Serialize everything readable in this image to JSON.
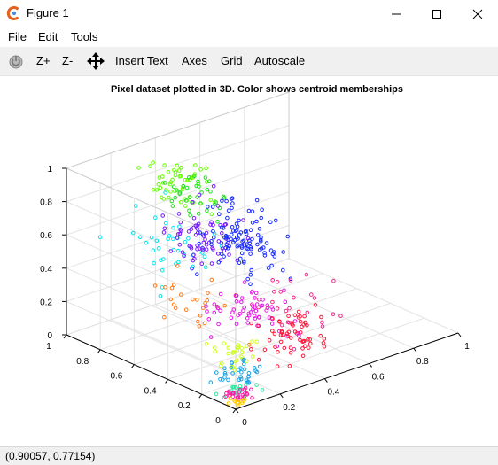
{
  "window": {
    "title": "Figure 1",
    "accent_color": "#e7601a"
  },
  "menu": {
    "file": "File",
    "edit": "Edit",
    "tools": "Tools"
  },
  "toolbar": {
    "zoom_in": "Z+",
    "zoom_out": "Z-",
    "insert_text": "Insert Text",
    "axes": "Axes",
    "grid": "Grid",
    "autoscale": "Autoscale"
  },
  "status": {
    "coords": "(0.90057, 0.77154)"
  },
  "chart_data": {
    "type": "scatter",
    "title": "Pixel dataset plotted in 3D. Color shows centroid memberships",
    "xlim": [
      0,
      1
    ],
    "ylim": [
      0,
      1
    ],
    "zlim": [
      0,
      1
    ],
    "x_ticks": [
      "0",
      "0.2",
      "0.4",
      "0.6",
      "0.8",
      "1"
    ],
    "y_ticks": [
      "0",
      "0.2",
      "0.4",
      "0.6",
      "0.8",
      "1"
    ],
    "z_ticks": [
      "0",
      "0.2",
      "0.4",
      "0.6",
      "0.8",
      "1"
    ],
    "grid": true,
    "marker": "open circle",
    "clusters": [
      {
        "color": "#66ff00",
        "center": [
          0.28,
          0.7,
          0.92
        ],
        "spread": [
          0.05,
          0.08,
          0.07
        ],
        "count": 55
      },
      {
        "color": "#22dd22",
        "center": [
          0.35,
          0.7,
          0.8
        ],
        "spread": [
          0.05,
          0.07,
          0.06
        ],
        "count": 35
      },
      {
        "color": "#00e5ee",
        "center": [
          0.12,
          0.55,
          0.7
        ],
        "spread": [
          0.05,
          0.12,
          0.1
        ],
        "count": 40
      },
      {
        "color": "#7a1aff",
        "center": [
          0.32,
          0.58,
          0.62
        ],
        "spread": [
          0.06,
          0.1,
          0.08
        ],
        "count": 70
      },
      {
        "color": "#1a2bff",
        "center": [
          0.48,
          0.62,
          0.52
        ],
        "spread": [
          0.06,
          0.1,
          0.1
        ],
        "count": 110
      },
      {
        "color": "#ee2e8b",
        "center": [
          0.45,
          0.3,
          0.3
        ],
        "spread": [
          0.08,
          0.1,
          0.08
        ],
        "count": 30
      },
      {
        "color": "#ff7a1a",
        "center": [
          0.12,
          0.45,
          0.38
        ],
        "spread": [
          0.04,
          0.1,
          0.07
        ],
        "count": 25
      },
      {
        "color": "#e61ae6",
        "center": [
          0.3,
          0.3,
          0.3
        ],
        "spread": [
          0.07,
          0.1,
          0.07
        ],
        "count": 60
      },
      {
        "color": "#ff1a3c",
        "center": [
          0.4,
          0.22,
          0.18
        ],
        "spread": [
          0.07,
          0.08,
          0.06
        ],
        "count": 60
      },
      {
        "color": "#ccff1a",
        "center": [
          0.12,
          0.15,
          0.18
        ],
        "spread": [
          0.04,
          0.05,
          0.05
        ],
        "count": 30
      },
      {
        "color": "#1aa3e6",
        "center": [
          0.12,
          0.15,
          0.08
        ],
        "spread": [
          0.04,
          0.05,
          0.04
        ],
        "count": 35
      },
      {
        "color": "#2ee6a0",
        "center": [
          0.07,
          0.08,
          0.04
        ],
        "spread": [
          0.03,
          0.03,
          0.02
        ],
        "count": 20
      },
      {
        "color": "#ff1aa3",
        "center": [
          0.05,
          0.07,
          0.03
        ],
        "spread": [
          0.03,
          0.03,
          0.02
        ],
        "count": 25
      },
      {
        "color": "#ffcc00",
        "center": [
          0.04,
          0.03,
          0.02
        ],
        "spread": [
          0.02,
          0.02,
          0.01
        ],
        "count": 12
      }
    ]
  }
}
